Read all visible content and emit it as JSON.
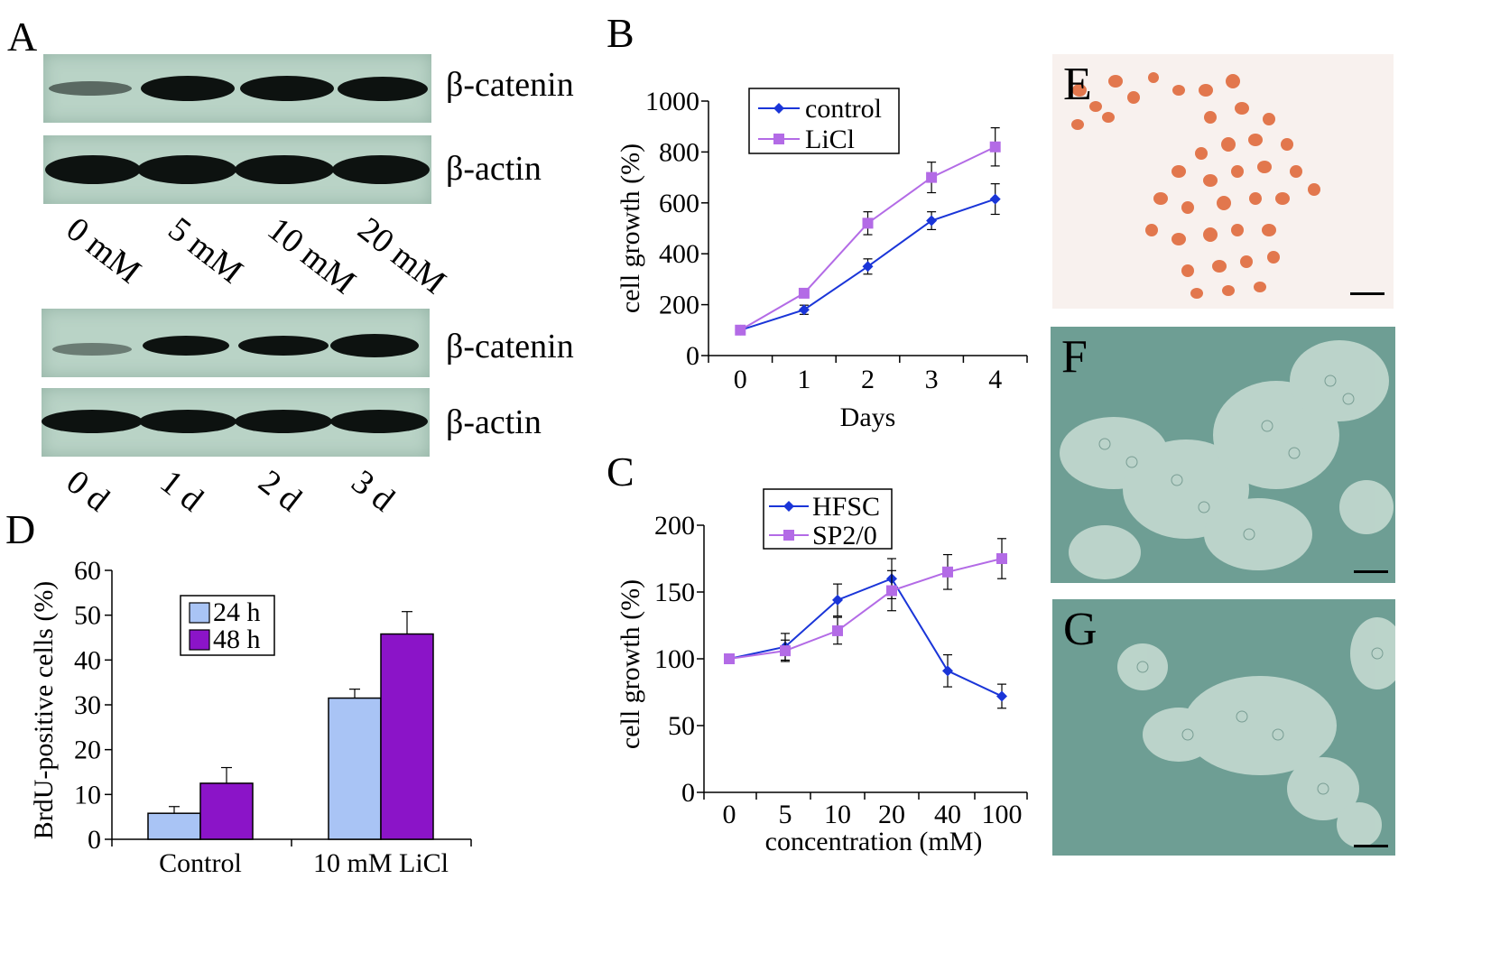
{
  "panel_a": {
    "letter": "A",
    "blot_top": {
      "rows": [
        "β-catenin",
        "β-actin"
      ],
      "lanes": [
        "0 mM",
        "5 mM",
        "10 mM",
        "20 mM"
      ]
    },
    "blot_bottom": {
      "rows": [
        "β-catenin",
        "β-actin"
      ],
      "lanes": [
        "0 d",
        "1 d",
        "2 d",
        "3 d"
      ]
    }
  },
  "panel_b": {
    "letter": "B"
  },
  "panel_c": {
    "letter": "C"
  },
  "panel_d": {
    "letter": "D"
  },
  "panel_e": {
    "letter": "E"
  },
  "panel_f": {
    "letter": "F"
  },
  "panel_g": {
    "letter": "G"
  },
  "colors": {
    "series1": "#1a35d8",
    "series2": "#b36be6",
    "bar24": "#a9c4f5",
    "bar48": "#8b14c8",
    "blot_bg": "#b9d3c6",
    "phase_bg": "#6e9e94"
  },
  "chart_data": [
    {
      "id": "B",
      "type": "line",
      "x": [
        0,
        1,
        2,
        3,
        4
      ],
      "xlabel": "Days",
      "ylabel": "cell growth (%)",
      "ylim": [
        0,
        1000
      ],
      "yticks": [
        0,
        200,
        400,
        600,
        800,
        1000
      ],
      "legend_position": "top-left",
      "series": [
        {
          "name": "control",
          "values": [
            100,
            180,
            350,
            530,
            615
          ],
          "errors": [
            10,
            18,
            30,
            35,
            60
          ],
          "marker": "diamond"
        },
        {
          "name": "LiCl",
          "values": [
            100,
            245,
            520,
            700,
            820
          ],
          "errors": [
            10,
            18,
            45,
            60,
            75
          ],
          "marker": "square"
        }
      ]
    },
    {
      "id": "C",
      "type": "line",
      "categories": [
        "0",
        "5",
        "10",
        "20",
        "40",
        "100"
      ],
      "xlabel": "concentration (mM)",
      "ylabel": "cell growth (%)",
      "ylim": [
        0,
        200
      ],
      "yticks": [
        0,
        50,
        100,
        150,
        200
      ],
      "legend_position": "top-left",
      "series": [
        {
          "name": "HFSC",
          "values": [
            100,
            109,
            144,
            160,
            91,
            72
          ],
          "errors": [
            0,
            10,
            12,
            15,
            12,
            9
          ],
          "marker": "diamond"
        },
        {
          "name": "SP2/0",
          "values": [
            100,
            106,
            121,
            151,
            165,
            175
          ],
          "errors": [
            0,
            8,
            10,
            15,
            13,
            15
          ],
          "marker": "square"
        }
      ]
    },
    {
      "id": "D",
      "type": "bar",
      "categories": [
        "Control",
        "10 mM LiCl"
      ],
      "ylabel": "BrdU-positive cells (%)",
      "ylim": [
        0,
        60
      ],
      "yticks": [
        0,
        10,
        20,
        30,
        40,
        50,
        60
      ],
      "legend_position": "top-left",
      "series": [
        {
          "name": "24 h",
          "values": [
            5.8,
            31.5
          ],
          "errors": [
            1.5,
            2.0
          ]
        },
        {
          "name": "48 h",
          "values": [
            12.5,
            45.8
          ],
          "errors": [
            3.5,
            5.0
          ]
        }
      ]
    }
  ]
}
